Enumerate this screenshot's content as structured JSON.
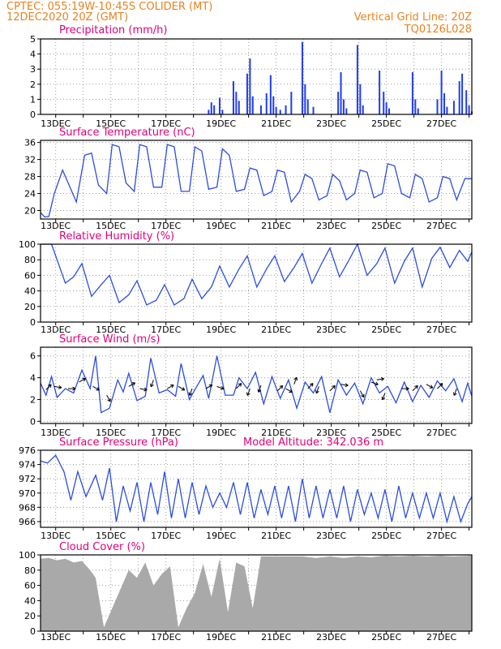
{
  "header": {
    "line1": "CPTEC:   055:19W-10:45S   COLIDER (MT)",
    "line2": "12DEC2020 20Z (GMT)",
    "right1": "Vertical Grid Line: 20Z",
    "right2": "TQ0126L028"
  },
  "colors": {
    "header": "#e8821e",
    "title": "#e0007a",
    "line": "#2b4de0",
    "bar": "#1f3df0",
    "cloud": "#a9a9a9",
    "grid": "#9a9a9a"
  },
  "day_labels": [
    "13DEC",
    "15DEC",
    "17DEC",
    "19DEC",
    "21DEC",
    "23DEC",
    "25DEC",
    "27DEC"
  ],
  "chart_data": [
    {
      "id": "precip",
      "type": "bar",
      "title": "Precipitation (mm/h)",
      "ylim": [
        0,
        5
      ],
      "yticks": [
        0,
        1,
        2,
        3,
        4,
        5
      ],
      "x_unit": "days since 12DEC2020 20Z",
      "bar_width_days": 0.045,
      "x": [
        6.1,
        6.2,
        6.3,
        6.5,
        6.6,
        7.0,
        7.1,
        7.2,
        7.5,
        7.6,
        7.7,
        8.0,
        8.2,
        8.35,
        8.45,
        8.55,
        8.7,
        8.9,
        9.1,
        9.5,
        9.6,
        9.7,
        9.9,
        10.8,
        10.9,
        11.0,
        11.1,
        11.5,
        11.6,
        11.7,
        12.3,
        12.45,
        12.55,
        12.65,
        13.5,
        13.6,
        13.7,
        14.4,
        14.55,
        14.65,
        14.75,
        15.0,
        15.2,
        15.3,
        15.45,
        15.55,
        15.65
      ],
      "values": [
        0.3,
        0.8,
        0.6,
        1.1,
        0.3,
        2.2,
        1.5,
        0.9,
        2.7,
        3.7,
        1.2,
        0.6,
        1.4,
        2.6,
        1.2,
        0.5,
        0.3,
        0.6,
        1.5,
        4.8,
        2.0,
        1.0,
        0.5,
        1.5,
        2.8,
        1.0,
        0.4,
        4.6,
        2.0,
        0.6,
        2.9,
        1.5,
        0.8,
        0.4,
        2.8,
        1.0,
        0.4,
        1.0,
        2.9,
        1.4,
        0.5,
        0.9,
        2.2,
        2.7,
        1.6,
        0.6,
        0.2
      ]
    },
    {
      "id": "temperature",
      "type": "line",
      "title": "Surface Temperature (nC)",
      "ylim": [
        18,
        36.5
      ],
      "yticks": [
        20,
        24,
        28,
        32,
        36
      ],
      "x_unit": "days since 12DEC2020 20Z",
      "x": [
        0,
        0.15,
        0.3,
        0.5,
        0.8,
        1.0,
        1.3,
        1.6,
        1.85,
        2.1,
        2.4,
        2.6,
        2.85,
        3.1,
        3.4,
        3.6,
        3.85,
        4.1,
        4.4,
        4.6,
        4.85,
        5.1,
        5.4,
        5.6,
        5.85,
        6.1,
        6.4,
        6.6,
        6.85,
        7.1,
        7.4,
        7.6,
        7.85,
        8.1,
        8.4,
        8.6,
        8.85,
        9.1,
        9.4,
        9.6,
        9.85,
        10.1,
        10.4,
        10.6,
        10.85,
        11.1,
        11.4,
        11.6,
        11.85,
        12.1,
        12.4,
        12.6,
        12.85,
        13.1,
        13.4,
        13.6,
        13.85,
        14.1,
        14.4,
        14.6,
        14.85,
        15.1,
        15.4,
        15.65
      ],
      "values": [
        19.5,
        18.5,
        18.6,
        24.0,
        29.5,
        26.5,
        22.0,
        33.0,
        33.5,
        26.0,
        24.0,
        35.5,
        35.0,
        26.5,
        24.5,
        35.5,
        35.0,
        25.5,
        25.5,
        35.5,
        35.0,
        24.5,
        24.5,
        35.0,
        34.0,
        25.0,
        25.5,
        34.5,
        33.0,
        24.5,
        25.0,
        30.0,
        29.5,
        23.5,
        24.5,
        29.5,
        29.0,
        22.0,
        24.5,
        28.5,
        27.5,
        22.5,
        23.5,
        28.5,
        27.0,
        22.5,
        24.0,
        29.5,
        29.0,
        23.0,
        24.0,
        31.0,
        30.5,
        24.0,
        23.0,
        28.5,
        27.5,
        22.0,
        23.0,
        28.0,
        27.5,
        22.5,
        27.5,
        27.5
      ]
    },
    {
      "id": "humidity",
      "type": "line",
      "title": "Relative Humidity (%)",
      "ylim": [
        0,
        100
      ],
      "yticks": [
        0,
        20,
        40,
        60,
        80,
        100
      ],
      "x_unit": "days since 12DEC2020 20Z",
      "x": [
        0,
        0.4,
        0.9,
        1.2,
        1.5,
        1.85,
        2.2,
        2.5,
        2.85,
        3.2,
        3.5,
        3.85,
        4.2,
        4.5,
        4.85,
        5.2,
        5.5,
        5.85,
        6.2,
        6.5,
        6.85,
        7.2,
        7.5,
        7.85,
        8.2,
        8.5,
        8.85,
        9.2,
        9.5,
        9.85,
        10.2,
        10.5,
        10.85,
        11.2,
        11.5,
        11.85,
        12.2,
        12.5,
        12.85,
        13.2,
        13.5,
        13.85,
        14.2,
        14.5,
        14.85,
        15.2,
        15.5,
        15.65
      ],
      "values": [
        100,
        100,
        50,
        58,
        75,
        33,
        48,
        60,
        25,
        35,
        53,
        22,
        28,
        48,
        22,
        30,
        55,
        30,
        45,
        72,
        45,
        68,
        85,
        45,
        68,
        85,
        52,
        70,
        88,
        50,
        75,
        95,
        58,
        80,
        100,
        60,
        75,
        95,
        50,
        78,
        95,
        45,
        82,
        96,
        70,
        92,
        78,
        90
      ]
    },
    {
      "id": "wind",
      "type": "line",
      "title": "Surface Wind (m/s)",
      "ylim": [
        -0.2,
        6.8
      ],
      "yticks": [
        0,
        2,
        4,
        6
      ],
      "x_unit": "days since 12DEC2020 20Z",
      "x": [
        0,
        0.2,
        0.4,
        0.6,
        0.9,
        1.2,
        1.5,
        1.8,
        2.0,
        2.2,
        2.5,
        2.8,
        3.0,
        3.2,
        3.5,
        3.8,
        4.0,
        4.3,
        4.6,
        4.9,
        5.1,
        5.4,
        5.6,
        5.9,
        6.1,
        6.4,
        6.7,
        7.0,
        7.2,
        7.5,
        7.8,
        8.1,
        8.4,
        8.7,
        9.0,
        9.3,
        9.6,
        9.9,
        10.2,
        10.5,
        10.8,
        11.1,
        11.4,
        11.7,
        12.0,
        12.3,
        12.6,
        12.9,
        13.2,
        13.5,
        13.8,
        14.1,
        14.4,
        14.7,
        15.0,
        15.3,
        15.5,
        15.65
      ],
      "values": [
        3.5,
        2.4,
        4.1,
        2.2,
        3.0,
        2.6,
        4.7,
        3.0,
        6.0,
        0.8,
        1.2,
        3.8,
        2.7,
        4.4,
        1.9,
        2.3,
        5.8,
        2.6,
        2.9,
        2.3,
        5.3,
        2.0,
        2.9,
        4.2,
        2.1,
        6.0,
        2.4,
        2.4,
        4.0,
        3.0,
        4.5,
        1.6,
        4.1,
        2.1,
        3.8,
        1.2,
        3.6,
        2.6,
        4.1,
        0.8,
        3.8,
        2.4,
        3.5,
        1.6,
        4.0,
        2.6,
        3.2,
        1.7,
        3.6,
        1.8,
        3.3,
        2.2,
        3.7,
        2.8,
        3.9,
        1.8,
        3.5,
        2.3
      ],
      "arrows": [
        {
          "x": 0.2,
          "v": 2.9,
          "dir_deg": 45
        },
        {
          "x": 0.5,
          "v": 3.2,
          "dir_deg": 100
        },
        {
          "x": 1.0,
          "v": 3.0,
          "dir_deg": 90
        },
        {
          "x": 1.4,
          "v": 3.6,
          "dir_deg": 60
        },
        {
          "x": 1.9,
          "v": 3.2,
          "dir_deg": 120
        },
        {
          "x": 2.4,
          "v": 2.4,
          "dir_deg": 150
        },
        {
          "x": 3.2,
          "v": 3.2,
          "dir_deg": 60
        },
        {
          "x": 3.6,
          "v": 3.0,
          "dir_deg": 100
        },
        {
          "x": 4.1,
          "v": 3.8,
          "dir_deg": 200
        },
        {
          "x": 4.6,
          "v": 3.0,
          "dir_deg": 60
        },
        {
          "x": 5.0,
          "v": 3.2,
          "dir_deg": 120
        },
        {
          "x": 5.5,
          "v": 3.0,
          "dir_deg": 200
        },
        {
          "x": 6.0,
          "v": 3.0,
          "dir_deg": 60
        },
        {
          "x": 6.4,
          "v": 3.2,
          "dir_deg": 110
        },
        {
          "x": 7.1,
          "v": 3.0,
          "dir_deg": 45
        },
        {
          "x": 7.6,
          "v": 3.0,
          "dir_deg": 200
        },
        {
          "x": 8.0,
          "v": 3.3,
          "dir_deg": 200
        },
        {
          "x": 8.6,
          "v": 2.8,
          "dir_deg": 45
        },
        {
          "x": 8.9,
          "v": 3.0,
          "dir_deg": 120
        },
        {
          "x": 9.2,
          "v": 3.4,
          "dir_deg": 20
        },
        {
          "x": 9.7,
          "v": 3.0,
          "dir_deg": 45
        },
        {
          "x": 10.1,
          "v": 3.2,
          "dir_deg": 200
        },
        {
          "x": 10.5,
          "v": 2.8,
          "dir_deg": 45
        },
        {
          "x": 10.9,
          "v": 3.4,
          "dir_deg": 100
        },
        {
          "x": 11.6,
          "v": 2.8,
          "dir_deg": 150
        },
        {
          "x": 12.0,
          "v": 3.6,
          "dir_deg": 110
        },
        {
          "x": 12.2,
          "v": 3.8,
          "dir_deg": 80
        },
        {
          "x": 12.5,
          "v": 2.6,
          "dir_deg": 200
        },
        {
          "x": 13.1,
          "v": 3.0,
          "dir_deg": 90
        },
        {
          "x": 13.5,
          "v": 2.8,
          "dir_deg": 45
        },
        {
          "x": 14.0,
          "v": 3.4,
          "dir_deg": 120
        },
        {
          "x": 14.4,
          "v": 3.0,
          "dir_deg": 45
        },
        {
          "x": 15.1,
          "v": 3.0,
          "dir_deg": 200
        }
      ]
    },
    {
      "id": "pressure",
      "type": "line",
      "title": "Surface Pressure (hPa)",
      "note": "Model Altitude: 342.036 m",
      "ylim": [
        965.2,
        976
      ],
      "yticks": [
        966,
        968,
        970,
        972,
        974,
        976
      ],
      "x_unit": "days since 12DEC2020 20Z",
      "x": [
        0,
        0.25,
        0.55,
        0.85,
        1.1,
        1.35,
        1.65,
        2.0,
        2.25,
        2.5,
        2.75,
        3.0,
        3.25,
        3.5,
        3.75,
        4.0,
        4.25,
        4.5,
        4.75,
        5.0,
        5.25,
        5.5,
        5.75,
        6.0,
        6.25,
        6.5,
        6.75,
        7.0,
        7.25,
        7.5,
        7.75,
        8.0,
        8.25,
        8.5,
        8.75,
        9.0,
        9.25,
        9.5,
        9.75,
        10.0,
        10.25,
        10.5,
        10.75,
        11.0,
        11.25,
        11.5,
        11.75,
        12.0,
        12.25,
        12.5,
        12.75,
        13.0,
        13.25,
        13.5,
        13.75,
        14.0,
        14.25,
        14.5,
        14.75,
        15.0,
        15.25,
        15.5,
        15.65
      ],
      "values": [
        974.5,
        974.2,
        975.3,
        973.0,
        969.0,
        973.0,
        969.5,
        972.5,
        969.0,
        973.5,
        966.0,
        971.0,
        967.5,
        971.5,
        966.0,
        971.5,
        967.0,
        973.0,
        966.5,
        972.0,
        966.5,
        971.5,
        967.0,
        971.0,
        968.0,
        970.0,
        968.0,
        971.5,
        967.0,
        971.5,
        966.5,
        970.5,
        967.0,
        971.0,
        966.5,
        971.0,
        966.0,
        972.0,
        966.5,
        971.0,
        966.5,
        970.5,
        966.5,
        971.0,
        966.0,
        970.5,
        967.0,
        970.0,
        966.5,
        970.5,
        966.0,
        971.0,
        966.5,
        970.0,
        966.5,
        970.0,
        966.5,
        970.0,
        966.0,
        969.5,
        966.0,
        968.5,
        969.5
      ]
    },
    {
      "id": "cloud",
      "type": "area",
      "title": "Cloud Cover (%)",
      "ylim": [
        0,
        100
      ],
      "yticks": [
        0,
        20,
        40,
        60,
        80,
        100
      ],
      "x_unit": "days since 12DEC2020 20Z",
      "x": [
        0,
        0.3,
        0.6,
        0.9,
        1.2,
        1.5,
        1.8,
        2.0,
        2.3,
        2.6,
        2.9,
        3.2,
        3.5,
        3.8,
        4.1,
        4.4,
        4.7,
        5.0,
        5.3,
        5.6,
        5.9,
        6.2,
        6.5,
        6.8,
        7.1,
        7.4,
        7.7,
        8.0,
        8.5,
        9.0,
        9.5,
        10.0,
        10.5,
        11.0,
        11.5,
        12.0,
        12.5,
        13.0,
        13.5,
        14.0,
        14.5,
        15.0,
        15.65
      ],
      "values": [
        95,
        96,
        93,
        95,
        90,
        92,
        80,
        70,
        5,
        30,
        55,
        80,
        70,
        90,
        60,
        75,
        85,
        5,
        30,
        50,
        88,
        45,
        95,
        25,
        90,
        85,
        30,
        98,
        98,
        98,
        98,
        96,
        98,
        96,
        98,
        97,
        99,
        98,
        99,
        98,
        99,
        98,
        99
      ]
    }
  ]
}
